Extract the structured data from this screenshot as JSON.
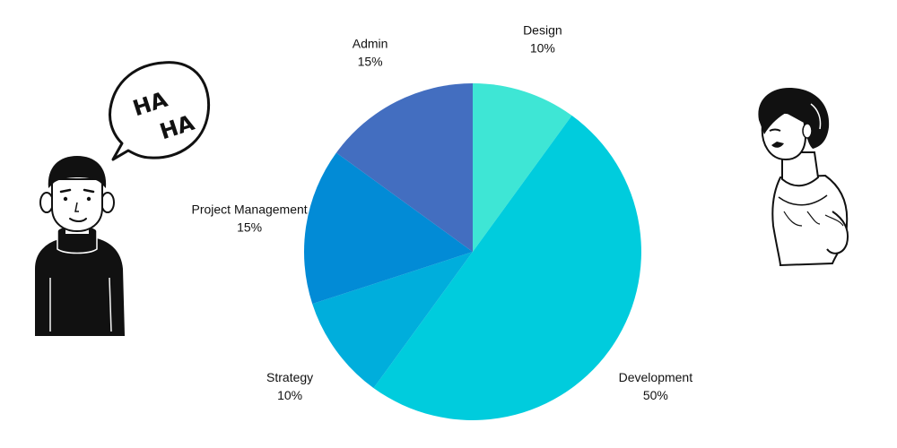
{
  "chart_data": {
    "type": "pie",
    "title": "",
    "start_angle_deg": 0,
    "direction": "clockwise",
    "slices": [
      {
        "name": "Design",
        "value": 10,
        "label": "10%",
        "color": "#3EE6D5"
      },
      {
        "name": "Development",
        "value": 50,
        "label": "50%",
        "color": "#00CCDD"
      },
      {
        "name": "Strategy",
        "value": 10,
        "label": "10%",
        "color": "#00AEDC"
      },
      {
        "name": "Project Management",
        "value": 15,
        "label": "15%",
        "color": "#028BD6"
      },
      {
        "name": "Admin",
        "value": 15,
        "label": "15%",
        "color": "#436EC0"
      }
    ]
  },
  "illustrations": {
    "speech_bubble": {
      "text": [
        "HA",
        "HA"
      ]
    }
  },
  "colors": {
    "background": "#FFFFFF",
    "ink": "#111111"
  }
}
